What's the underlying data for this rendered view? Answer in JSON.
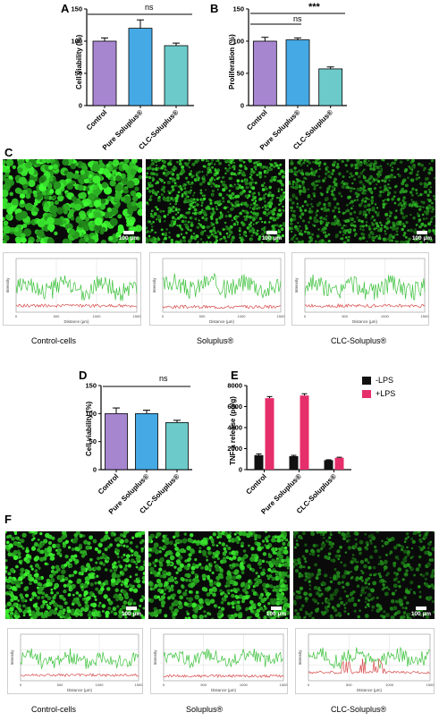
{
  "panels": {
    "A": "A",
    "B": "B",
    "C": "C",
    "D": "D",
    "E": "E",
    "F": "F"
  },
  "charts": {
    "A": {
      "ylabel": "Cell viability (%)",
      "sig": "ns"
    },
    "B": {
      "ylabel": "Proliferation (%)",
      "sig_ns": "ns",
      "sig_star": "***"
    },
    "D": {
      "ylabel": "Cell viability (%)",
      "sig": "ns"
    },
    "E": {
      "ylabel": "TNF-a release (pg/g)",
      "legend": [
        "-LPS",
        "+LPS"
      ]
    }
  },
  "chart_data": [
    {
      "id": "A",
      "type": "bar",
      "categories": [
        "Control",
        "Pure Soluplus®",
        "CLC-Soluplus®"
      ],
      "values": [
        100,
        120,
        93
      ],
      "errors": [
        5,
        13,
        4
      ],
      "ylabel": "Cell viability (%)",
      "ylim": [
        0,
        150
      ],
      "yticks": [
        "0",
        "50",
        "100",
        "150"
      ],
      "colors": [
        "#a786d0",
        "#45a9e6",
        "#6ccaca"
      ]
    },
    {
      "id": "B",
      "type": "bar",
      "categories": [
        "Control",
        "Pure Soluplus®",
        "CLC-Soluplus®"
      ],
      "values": [
        100,
        102,
        57
      ],
      "errors": [
        6,
        3,
        3
      ],
      "ylabel": "Proliferation (%)",
      "ylim": [
        0,
        150
      ],
      "yticks": [
        "0",
        "50",
        "100",
        "150"
      ],
      "colors": [
        "#a786d0",
        "#45a9e6",
        "#6ccaca"
      ]
    },
    {
      "id": "D",
      "type": "bar",
      "categories": [
        "Control",
        "Pure Soluplus®",
        "CLC-Soluplus®"
      ],
      "values": [
        100,
        100,
        84
      ],
      "errors": [
        10,
        6,
        4
      ],
      "ylabel": "Cell viability (%)",
      "ylim": [
        0,
        150
      ],
      "yticks": [
        "0",
        "50",
        "100",
        "150"
      ],
      "colors": [
        "#a786d0",
        "#45a9e6",
        "#6ccaca"
      ]
    },
    {
      "id": "E",
      "type": "bar",
      "categories": [
        "Control",
        "Pure Soluplus®",
        "CLC-Soluplus®"
      ],
      "series": [
        {
          "name": "-LPS",
          "values": [
            1380,
            1280,
            900
          ],
          "errors": [
            120,
            80,
            40
          ],
          "color": "#111111"
        },
        {
          "name": "+LPS",
          "values": [
            6800,
            7050,
            1130
          ],
          "errors": [
            150,
            170,
            50
          ],
          "color": "#e62e6b"
        }
      ],
      "ylabel": "TNF-a release (pg/g)",
      "ylim": [
        0,
        8000
      ],
      "yticks": [
        "0",
        "2000",
        "4000",
        "6000",
        "8000"
      ]
    }
  ],
  "micrographs": {
    "C": [
      {
        "caption": "Control-cells",
        "scale": "100 µm"
      },
      {
        "caption": "Soluplus®",
        "scale": "100 µm"
      },
      {
        "caption": "CLC-Soluplus®",
        "scale": "100 µm"
      }
    ],
    "F": [
      {
        "caption": "Control-cells",
        "scale": "100 µm"
      },
      {
        "caption": "Soluplus®",
        "scale": "100 µm"
      },
      {
        "caption": "CLC-Soluplus®",
        "scale": "100 µm"
      }
    ]
  },
  "profiles": {
    "xlabel": "Distance (µm)",
    "ylabel": "Intensity",
    "xticks": [
      "0",
      "500",
      "1000",
      "1500"
    ],
    "colors": {
      "green": "#3fc23f",
      "red": "#d84a4a"
    }
  }
}
